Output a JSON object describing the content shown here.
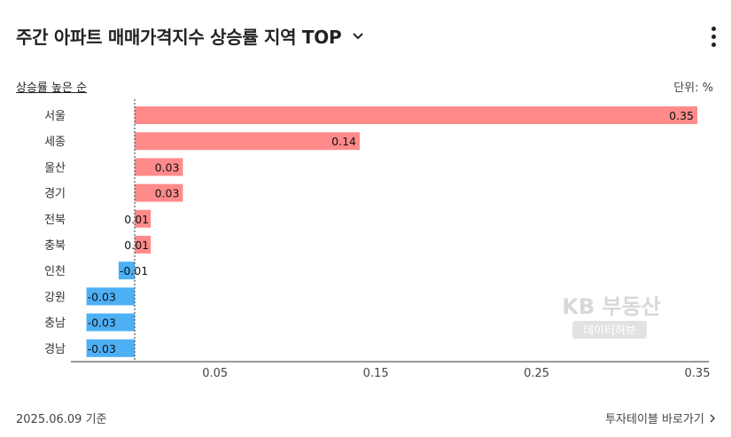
{
  "header": {
    "title": "주간 아파트 매매가격지수 상승률 지역 TOP",
    "dropdown_icon": "chevron-down-icon",
    "menu_icon": "kebab-menu-icon"
  },
  "sort_label": "상승률 높은 순",
  "unit_label": "단위: %",
  "footer": {
    "date": "2025.06.09 기준",
    "link": "투자테이블 바로가기"
  },
  "watermark": {
    "line1": "KB 부동산",
    "line2": "데이터허브"
  },
  "colors": {
    "positive": "#ff8a8a",
    "negative": "#4db0f5",
    "text": "#222222"
  },
  "chart_data": {
    "type": "bar",
    "orientation": "horizontal",
    "categories": [
      "서울",
      "세종",
      "울산",
      "경기",
      "전북",
      "충북",
      "인천",
      "강원",
      "충남",
      "경남"
    ],
    "values": [
      0.35,
      0.14,
      0.03,
      0.03,
      0.01,
      0.01,
      -0.01,
      -0.03,
      -0.03,
      -0.03
    ],
    "value_labels": [
      "0.35",
      "0.14",
      "0.03",
      "0.03",
      "0.01",
      "0.01",
      "-0.01",
      "-0.03",
      "-0.03",
      "-0.03"
    ],
    "x_ticks": [
      0.05,
      0.15,
      0.25,
      0.35
    ],
    "x_tick_labels": [
      "0.05",
      "0.15",
      "0.25",
      "0.35"
    ],
    "xlim": [
      -0.03,
      0.35
    ],
    "grid": false
  }
}
